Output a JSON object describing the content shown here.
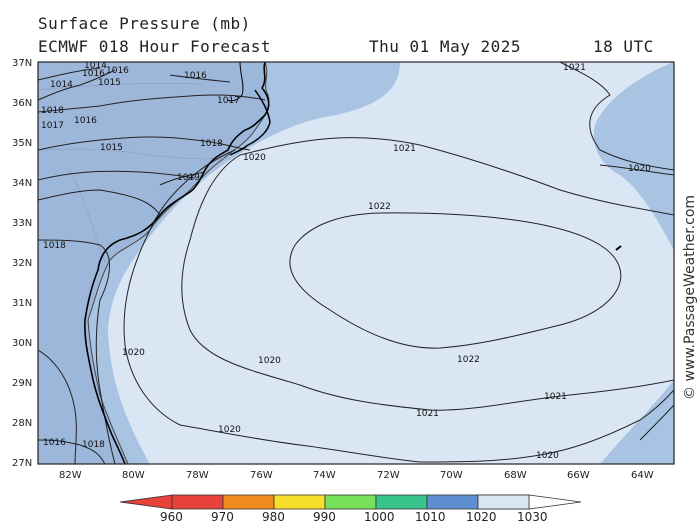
{
  "header": {
    "title": "Surface Pressure (mb)",
    "model": "ECMWF 018 Hour Forecast",
    "date": "Thu 01 May 2025",
    "time": "18 UTC"
  },
  "credit": "© www.PassageWeather.com",
  "axes": {
    "lat_labels": [
      "37N",
      "36N",
      "35N",
      "34N",
      "33N",
      "32N",
      "31N",
      "30N",
      "29N",
      "28N",
      "27N"
    ],
    "lon_labels": [
      "82W",
      "80W",
      "78W",
      "76W",
      "74W",
      "72W",
      "70W",
      "68W",
      "66W",
      "64W"
    ]
  },
  "isobars": [
    "1014",
    "1016",
    "1016",
    "1015",
    "1016",
    "1014",
    "1018",
    "1016",
    "1017",
    "1017",
    "1018",
    "1019",
    "1020",
    "1021",
    "1022",
    "1022",
    "1021",
    "1021",
    "1020",
    "1020",
    "1020",
    "1020",
    "1020",
    "1018",
    "1018",
    "1016",
    "1016",
    "1015",
    "1017",
    "1021"
  ],
  "colorbar": {
    "ticks": [
      "960",
      "970",
      "980",
      "990",
      "1000",
      "1010",
      "1020",
      "1030"
    ],
    "colors": [
      "#e8403a",
      "#f08a1c",
      "#f7de2a",
      "#78e05a",
      "#38c48c",
      "#5f8fd0",
      "#9fbde3",
      "#dbe6f5"
    ]
  }
}
